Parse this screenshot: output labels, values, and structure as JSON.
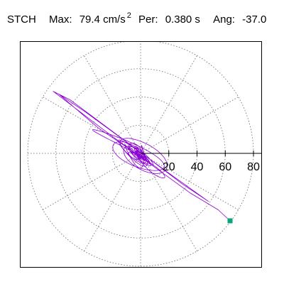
{
  "header": {
    "station": "STCH",
    "max_label": "Max:",
    "max_value": "79.4 cm/s",
    "max_exponent": "2",
    "period_label": "Per:",
    "period_value": "0.380 s",
    "angle_label": "Ang:",
    "angle_value": "-37.0"
  },
  "chart_data": {
    "type": "scatter",
    "subtype": "polar-particle-motion",
    "title": "STCH",
    "station": "STCH",
    "max_accel_cm_s2": 79.4,
    "period_s": 0.38,
    "angle_deg": -37.0,
    "radial_ticks": [
      20,
      40,
      60,
      80
    ],
    "radial_tick_labels": [
      "20",
      "40",
      "60",
      "80"
    ],
    "r_max": 80,
    "angular_grid_step_deg": 30,
    "grid": true,
    "end_marker": {
      "x": 63.4,
      "y": -47.8,
      "color": "#0aa37a"
    },
    "trace_color": "#8a00d4"
  }
}
